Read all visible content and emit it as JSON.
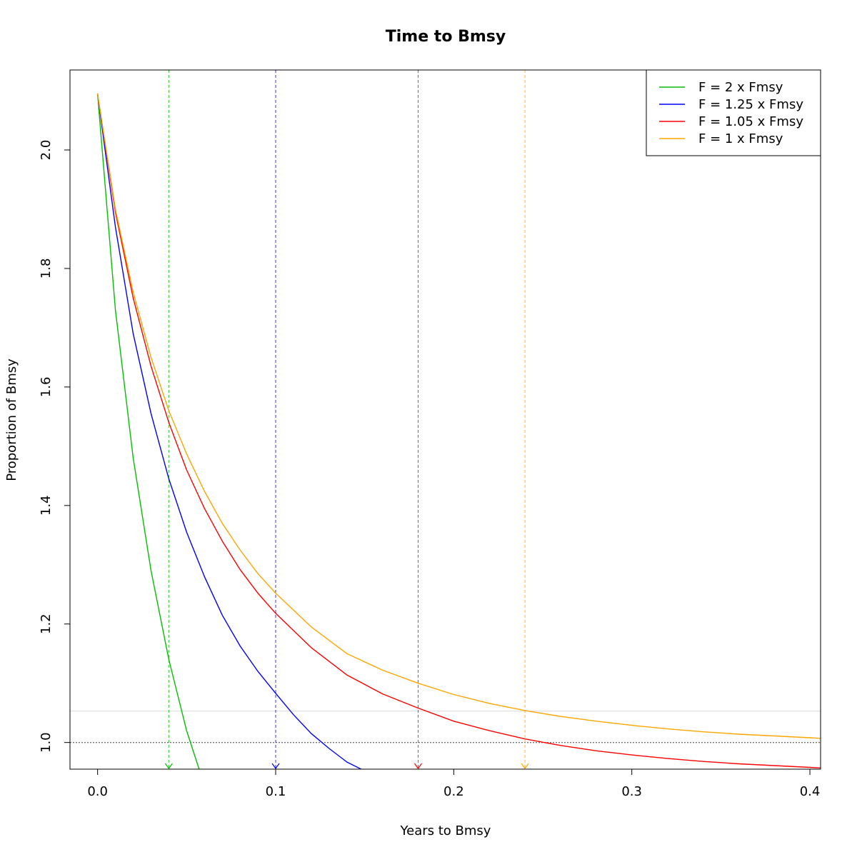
{
  "chart_data": {
    "type": "line",
    "title": "Time to Bmsy",
    "xlabel": "Years to Bmsy",
    "ylabel": "Proportion of Bmsy",
    "xlim": [
      -0.0155,
      0.406
    ],
    "ylim": [
      0.955,
      2.135
    ],
    "x_ticks": [
      0.0,
      0.1,
      0.2,
      0.3,
      0.4
    ],
    "x_tick_labels": [
      "0.0",
      "0.1",
      "0.2",
      "0.3",
      "0.4"
    ],
    "y_ticks": [
      1.0,
      1.2,
      1.4,
      1.6,
      1.8,
      2.0
    ],
    "y_tick_labels": [
      "1.0",
      "1.2",
      "1.4",
      "1.6",
      "1.8",
      "2.0"
    ],
    "grid": false,
    "legend_position": "top-right",
    "reference_lines": [
      {
        "axis": "y",
        "value": 1.0,
        "color": "#555555",
        "style": "dotted"
      },
      {
        "axis": "y",
        "value": 1.053,
        "color": "#dddddd",
        "style": "solid"
      }
    ],
    "series": [
      {
        "name": "F = 2 x Fmsy",
        "color": "#00c000",
        "marker_x": 0.04,
        "x": [
          0,
          0.01,
          0.02,
          0.03,
          0.04,
          0.05,
          0.057
        ],
        "y": [
          2.095,
          1.73,
          1.48,
          1.29,
          1.14,
          1.02,
          0.955
        ]
      },
      {
        "name": "F = 1.25 x Fmsy",
        "color": "#0000ff",
        "marker_x": 0.1,
        "x": [
          0,
          0.01,
          0.02,
          0.03,
          0.04,
          0.05,
          0.06,
          0.07,
          0.08,
          0.09,
          0.1,
          0.11,
          0.12,
          0.13,
          0.14,
          0.148
        ],
        "y": [
          2.095,
          1.87,
          1.69,
          1.555,
          1.445,
          1.355,
          1.28,
          1.215,
          1.163,
          1.12,
          1.083,
          1.047,
          1.015,
          0.99,
          0.967,
          0.955
        ]
      },
      {
        "name": "F = 1.05 x Fmsy",
        "color": "#ff0000",
        "marker_x": 0.18,
        "x": [
          0,
          0.01,
          0.02,
          0.03,
          0.04,
          0.05,
          0.06,
          0.07,
          0.08,
          0.09,
          0.1,
          0.12,
          0.14,
          0.16,
          0.18,
          0.2,
          0.22,
          0.24,
          0.26,
          0.28,
          0.3,
          0.32,
          0.34,
          0.36,
          0.38,
          0.4,
          0.406
        ],
        "y": [
          2.095,
          1.895,
          1.75,
          1.635,
          1.54,
          1.46,
          1.395,
          1.34,
          1.292,
          1.252,
          1.218,
          1.16,
          1.114,
          1.082,
          1.058,
          1.036,
          1.02,
          1.006,
          0.995,
          0.986,
          0.979,
          0.973,
          0.968,
          0.964,
          0.961,
          0.958,
          0.957
        ]
      },
      {
        "name": "F = 1 x Fmsy",
        "color": "#ffa500",
        "marker_x": 0.24,
        "x": [
          0,
          0.01,
          0.02,
          0.03,
          0.04,
          0.05,
          0.06,
          0.07,
          0.08,
          0.09,
          0.1,
          0.12,
          0.14,
          0.16,
          0.18,
          0.2,
          0.22,
          0.24,
          0.26,
          0.28,
          0.3,
          0.32,
          0.34,
          0.36,
          0.38,
          0.4,
          0.406
        ],
        "y": [
          2.095,
          1.9,
          1.76,
          1.65,
          1.56,
          1.487,
          1.424,
          1.37,
          1.325,
          1.285,
          1.252,
          1.195,
          1.15,
          1.122,
          1.1,
          1.081,
          1.066,
          1.054,
          1.044,
          1.036,
          1.029,
          1.023,
          1.018,
          1.014,
          1.011,
          1.008,
          1.007
        ]
      }
    ]
  }
}
